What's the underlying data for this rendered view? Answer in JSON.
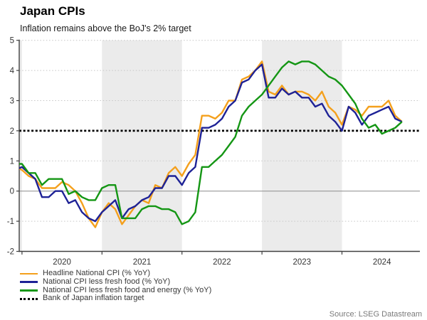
{
  "header": {
    "title": "Japan CPIs",
    "subtitle": "Inflation remains above the BoJ's 2% target"
  },
  "source": "Source: LSEG Datastream",
  "legend": {
    "items": [
      {
        "label": "Headline National CPI (% YoY)",
        "color": "#F4A01C",
        "style": "solid"
      },
      {
        "label": "National CPI less fresh food (% YoY)",
        "color": "#1E2296",
        "style": "solid"
      },
      {
        "label": "National CPI less fresh food and energy (% YoY)",
        "color": "#149614",
        "style": "solid"
      },
      {
        "label": "Bank of Japan inflation target",
        "color": "#000000",
        "style": "dotted"
      }
    ]
  },
  "chart_data": {
    "type": "line",
    "title": "Japan CPIs",
    "subtitle": "Inflation remains above the BoJ's 2% target",
    "x_unit": "month",
    "x": [
      "2019-12",
      "2020-01",
      "2020-02",
      "2020-03",
      "2020-04",
      "2020-05",
      "2020-06",
      "2020-07",
      "2020-08",
      "2020-09",
      "2020-10",
      "2020-11",
      "2020-12",
      "2021-01",
      "2021-02",
      "2021-03",
      "2021-04",
      "2021-05",
      "2021-06",
      "2021-07",
      "2021-08",
      "2021-09",
      "2021-10",
      "2021-11",
      "2021-12",
      "2022-01",
      "2022-02",
      "2022-03",
      "2022-04",
      "2022-05",
      "2022-06",
      "2022-07",
      "2022-08",
      "2022-09",
      "2022-10",
      "2022-11",
      "2022-12",
      "2023-01",
      "2023-02",
      "2023-03",
      "2023-04",
      "2023-05",
      "2023-06",
      "2023-07",
      "2023-08",
      "2023-09",
      "2023-10",
      "2023-11",
      "2023-12",
      "2024-01",
      "2024-02",
      "2024-03",
      "2024-04",
      "2024-05",
      "2024-06",
      "2024-07",
      "2024-08",
      "2024-09",
      "2024-10"
    ],
    "series": [
      {
        "name": "Headline National CPI (% YoY)",
        "color": "#F4A01C",
        "values": [
          0.8,
          0.7,
          0.5,
          0.4,
          0.1,
          0.1,
          0.1,
          0.3,
          0.2,
          0.0,
          -0.4,
          -0.9,
          -1.2,
          -0.7,
          -0.4,
          -0.6,
          -1.1,
          -0.8,
          -0.5,
          -0.3,
          -0.4,
          0.2,
          0.1,
          0.6,
          0.8,
          0.5,
          0.9,
          1.2,
          2.5,
          2.5,
          2.4,
          2.6,
          3.0,
          3.0,
          3.7,
          3.8,
          4.0,
          4.3,
          3.3,
          3.2,
          3.5,
          3.2,
          3.3,
          3.3,
          3.2,
          3.0,
          3.3,
          2.8,
          2.6,
          2.2,
          2.8,
          2.7,
          2.5,
          2.8,
          2.8,
          2.8,
          3.0,
          2.5,
          2.3
        ]
      },
      {
        "name": "National CPI less fresh food (% YoY)",
        "color": "#1E2296",
        "values": [
          0.7,
          0.8,
          0.6,
          0.4,
          -0.2,
          -0.2,
          0.0,
          0.0,
          -0.4,
          -0.3,
          -0.7,
          -0.9,
          -1.0,
          -0.7,
          -0.5,
          -0.3,
          -0.9,
          -0.6,
          -0.5,
          -0.3,
          -0.2,
          0.1,
          0.1,
          0.5,
          0.5,
          0.2,
          0.6,
          0.8,
          2.1,
          2.1,
          2.2,
          2.4,
          2.8,
          3.0,
          3.6,
          3.7,
          4.0,
          4.2,
          3.1,
          3.1,
          3.4,
          3.2,
          3.3,
          3.1,
          3.1,
          2.8,
          2.9,
          2.5,
          2.3,
          2.0,
          2.8,
          2.6,
          2.2,
          2.5,
          2.6,
          2.7,
          2.8,
          2.4,
          2.3
        ]
      },
      {
        "name": "National CPI less fresh food and energy (% YoY)",
        "color": "#149614",
        "values": [
          0.9,
          0.9,
          0.6,
          0.6,
          0.2,
          0.4,
          0.4,
          0.4,
          -0.1,
          0.0,
          -0.2,
          -0.3,
          -0.3,
          0.1,
          0.2,
          0.2,
          -0.9,
          -0.9,
          -0.9,
          -0.6,
          -0.5,
          -0.5,
          -0.6,
          -0.6,
          -0.7,
          -1.1,
          -1.0,
          -0.7,
          0.8,
          0.8,
          1.0,
          1.2,
          1.5,
          1.8,
          2.5,
          2.8,
          3.0,
          3.2,
          3.5,
          3.8,
          4.1,
          4.3,
          4.2,
          4.3,
          4.3,
          4.2,
          4.0,
          3.8,
          3.7,
          3.5,
          3.2,
          2.9,
          2.4,
          2.1,
          2.2,
          1.9,
          2.0,
          2.1,
          2.3
        ]
      }
    ],
    "target_line": {
      "name": "Bank of Japan inflation target",
      "value": 2,
      "color": "#000000",
      "style": "dotted"
    },
    "ylim": [
      -2,
      5
    ],
    "yticks": [
      -2,
      -1,
      0,
      1,
      2,
      3,
      4,
      5
    ],
    "year_labels": [
      "2020",
      "2021",
      "2022",
      "2023",
      "2024"
    ],
    "shaded_years": [
      "2021",
      "2023"
    ],
    "band_color": "#EBEBEB",
    "grid": "dotted-horizontal",
    "legend_position": "bottom-left"
  }
}
